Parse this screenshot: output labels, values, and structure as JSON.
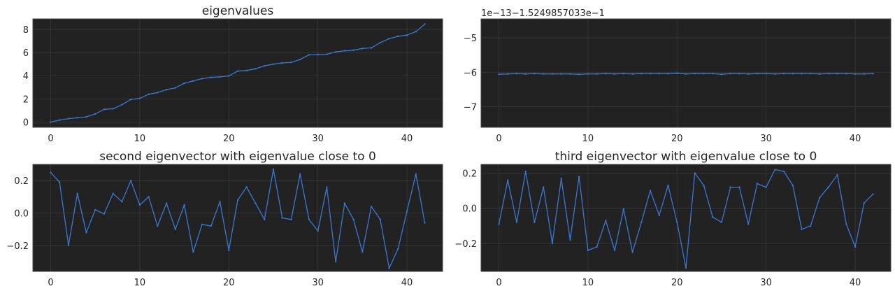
{
  "chart_data": [
    {
      "type": "line",
      "title": "eigenvalues",
      "offset_text": "",
      "xlim": [
        -2,
        44
      ],
      "ylim": [
        -0.45,
        8.9
      ],
      "xticks": [
        0,
        10,
        20,
        30,
        40
      ],
      "yticks": [
        0,
        2,
        4,
        6,
        8
      ],
      "ytick_labels": [
        "0",
        "2",
        "4",
        "6",
        "8"
      ],
      "grid": true,
      "color": "#3a78d4",
      "x": [
        0,
        1,
        2,
        3,
        4,
        5,
        6,
        7,
        8,
        9,
        10,
        11,
        12,
        13,
        14,
        15,
        16,
        17,
        18,
        19,
        20,
        21,
        22,
        23,
        24,
        25,
        26,
        27,
        28,
        29,
        30,
        31,
        32,
        33,
        34,
        35,
        36,
        37,
        38,
        39,
        40,
        41,
        42
      ],
      "values": [
        0.0,
        0.18,
        0.3,
        0.37,
        0.45,
        0.7,
        1.1,
        1.15,
        1.5,
        1.95,
        2.05,
        2.4,
        2.55,
        2.8,
        2.95,
        3.35,
        3.55,
        3.75,
        3.85,
        3.9,
        3.98,
        4.4,
        4.45,
        4.6,
        4.85,
        5.0,
        5.1,
        5.15,
        5.4,
        5.8,
        5.82,
        5.85,
        6.05,
        6.15,
        6.2,
        6.35,
        6.4,
        6.85,
        7.2,
        7.4,
        7.5,
        7.8,
        8.45
      ]
    },
    {
      "type": "line",
      "title": "",
      "offset_text": "1e−13−1.5249857033e−1",
      "xlim": [
        -2,
        44
      ],
      "ylim": [
        -7.6,
        -4.45
      ],
      "xticks": [
        0,
        10,
        20,
        30,
        40
      ],
      "yticks": [
        -5,
        -6,
        -7
      ],
      "ytick_labels": [
        "−5",
        "−6",
        "−7"
      ],
      "grid": true,
      "color": "#3a78d4",
      "x": [
        0,
        1,
        2,
        3,
        4,
        5,
        6,
        7,
        8,
        9,
        10,
        11,
        12,
        13,
        14,
        15,
        16,
        17,
        18,
        19,
        20,
        21,
        22,
        23,
        24,
        25,
        26,
        27,
        28,
        29,
        30,
        31,
        32,
        33,
        34,
        35,
        36,
        37,
        38,
        39,
        40,
        41,
        42
      ],
      "values": [
        -6.06,
        -6.05,
        -6.04,
        -6.05,
        -6.04,
        -6.05,
        -6.05,
        -6.05,
        -6.05,
        -6.06,
        -6.05,
        -6.05,
        -6.04,
        -6.05,
        -6.04,
        -6.05,
        -6.04,
        -6.04,
        -6.04,
        -6.04,
        -6.03,
        -6.05,
        -6.04,
        -6.04,
        -6.04,
        -6.06,
        -6.04,
        -6.04,
        -6.05,
        -6.04,
        -6.04,
        -6.05,
        -6.04,
        -6.04,
        -6.04,
        -6.04,
        -6.05,
        -6.04,
        -6.04,
        -6.04,
        -6.05,
        -6.05,
        -6.04
      ]
    },
    {
      "type": "line",
      "title": "second eigenvector with eigenvalue close to 0",
      "offset_text": "",
      "xlim": [
        -2,
        44
      ],
      "ylim": [
        -0.36,
        0.3
      ],
      "xticks": [
        0,
        10,
        20,
        30,
        40
      ],
      "yticks": [
        0.2,
        0.0,
        -0.2
      ],
      "ytick_labels": [
        "0.2",
        "0.0",
        "−0.2"
      ],
      "grid": true,
      "color": "#3a78d4",
      "x": [
        0,
        1,
        2,
        3,
        4,
        5,
        6,
        7,
        8,
        9,
        10,
        11,
        12,
        13,
        14,
        15,
        16,
        17,
        18,
        19,
        20,
        21,
        22,
        23,
        24,
        25,
        26,
        27,
        28,
        29,
        30,
        31,
        32,
        33,
        34,
        35,
        36,
        37,
        38,
        39,
        40,
        41,
        42
      ],
      "values": [
        0.25,
        0.19,
        -0.2,
        0.12,
        -0.12,
        0.02,
        -0.005,
        0.12,
        0.07,
        0.2,
        0.05,
        0.1,
        -0.08,
        0.06,
        -0.1,
        0.05,
        -0.24,
        -0.07,
        -0.08,
        0.07,
        -0.23,
        0.08,
        0.16,
        0.06,
        -0.04,
        0.27,
        -0.03,
        -0.04,
        0.24,
        -0.04,
        -0.11,
        0.16,
        -0.3,
        0.06,
        -0.04,
        -0.24,
        0.04,
        -0.04,
        -0.34,
        -0.22,
        0.01,
        0.24,
        -0.06
      ]
    },
    {
      "type": "line",
      "title": "third eigenvector with eigenvalue close to 0",
      "offset_text": "",
      "xlim": [
        -2,
        44
      ],
      "ylim": [
        -0.36,
        0.25
      ],
      "xticks": [
        0,
        10,
        20,
        30,
        40
      ],
      "yticks": [
        0.2,
        0.0,
        -0.2
      ],
      "ytick_labels": [
        "0.2",
        "0.0",
        "−0.2"
      ],
      "grid": true,
      "color": "#3a78d4",
      "x": [
        0,
        1,
        2,
        3,
        4,
        5,
        6,
        7,
        8,
        9,
        10,
        11,
        12,
        13,
        14,
        15,
        16,
        17,
        18,
        19,
        20,
        21,
        22,
        23,
        24,
        25,
        26,
        27,
        28,
        29,
        30,
        31,
        32,
        33,
        34,
        35,
        36,
        37,
        38,
        39,
        40,
        41,
        42
      ],
      "values": [
        -0.09,
        0.16,
        -0.08,
        0.21,
        -0.08,
        0.12,
        -0.2,
        0.17,
        -0.18,
        0.18,
        -0.24,
        -0.22,
        -0.07,
        -0.24,
        -0.005,
        -0.25,
        -0.08,
        0.1,
        -0.04,
        0.13,
        -0.08,
        -0.34,
        0.2,
        0.13,
        -0.05,
        -0.08,
        0.12,
        0.12,
        -0.09,
        0.14,
        0.12,
        0.22,
        0.21,
        0.13,
        -0.12,
        -0.1,
        0.06,
        0.12,
        0.19,
        -0.09,
        -0.22,
        0.03,
        0.08
      ]
    }
  ]
}
